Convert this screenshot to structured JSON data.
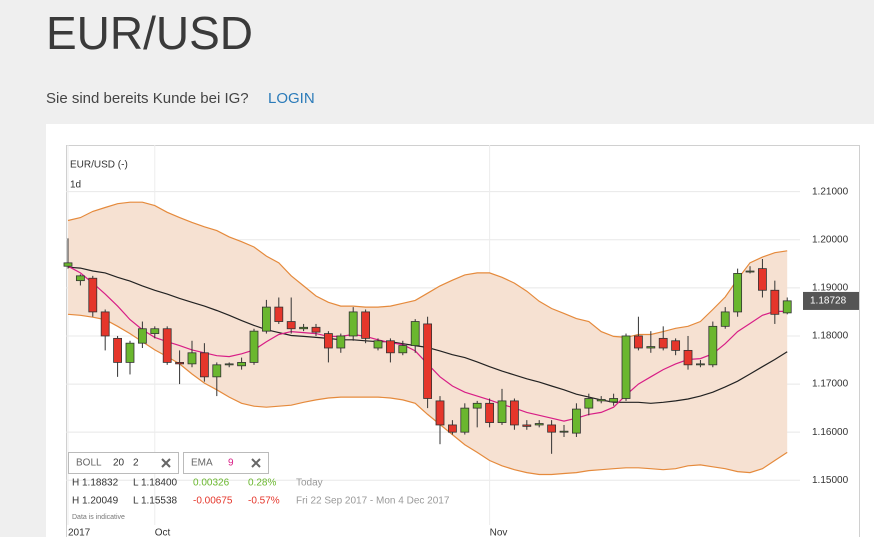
{
  "header": {
    "title": "EUR/USD",
    "prompt": "Sie sind bereits Kunde bei IG?",
    "login": "LOGIN"
  },
  "chart_data": {
    "type": "candlestick",
    "title": "EUR/USD (-)",
    "interval": "1d",
    "up_color": "#6ab72e",
    "down_color": "#e5362b",
    "open": [
      1.1945,
      1.1915,
      1.192,
      1.185,
      1.1795,
      1.1745,
      1.1785,
      1.1805,
      1.1815,
      1.1745,
      1.1742,
      1.1765,
      1.1715,
      1.174,
      1.1738,
      1.1745,
      1.181,
      1.186,
      1.183,
      1.1815,
      1.1818,
      1.1805,
      1.1775,
      1.18,
      1.185,
      1.1775,
      1.179,
      1.1765,
      1.178,
      1.1825,
      1.1665,
      1.1615,
      1.16,
      1.165,
      1.166,
      1.162,
      1.1665,
      1.1615,
      1.1615,
      1.1615,
      1.16,
      1.1598,
      1.165,
      1.1665,
      1.1663,
      1.167,
      1.18,
      1.1775,
      1.1795,
      1.179,
      1.177,
      1.174,
      1.174,
      1.182,
      1.185,
      1.1933,
      1.194,
      1.1895,
      1.1848
    ],
    "high": [
      1.2003,
      1.1928,
      1.1925,
      1.1855,
      1.18,
      1.179,
      1.183,
      1.182,
      1.182,
      1.177,
      1.179,
      1.1785,
      1.1745,
      1.1745,
      1.1755,
      1.1815,
      1.1875,
      1.188,
      1.188,
      1.1825,
      1.1825,
      1.181,
      1.1805,
      1.186,
      1.1855,
      1.1795,
      1.1795,
      1.179,
      1.1835,
      1.184,
      1.1675,
      1.1625,
      1.166,
      1.1665,
      1.167,
      1.169,
      1.167,
      1.1625,
      1.1625,
      1.1625,
      1.1615,
      1.166,
      1.168,
      1.1675,
      1.168,
      1.1805,
      1.184,
      1.181,
      1.182,
      1.1795,
      1.18,
      1.175,
      1.183,
      1.186,
      1.194,
      1.1945,
      1.196,
      1.1915,
      1.188
    ],
    "low": [
      1.194,
      1.1905,
      1.184,
      1.177,
      1.1715,
      1.172,
      1.1775,
      1.1795,
      1.174,
      1.17,
      1.1735,
      1.1705,
      1.1675,
      1.1735,
      1.173,
      1.174,
      1.1805,
      1.1825,
      1.1805,
      1.181,
      1.18,
      1.1745,
      1.1765,
      1.179,
      1.1785,
      1.177,
      1.1745,
      1.176,
      1.1765,
      1.165,
      1.1575,
      1.1595,
      1.1595,
      1.161,
      1.161,
      1.1615,
      1.1605,
      1.1605,
      1.161,
      1.1555,
      1.159,
      1.159,
      1.1635,
      1.166,
      1.1655,
      1.1665,
      1.177,
      1.1765,
      1.177,
      1.176,
      1.173,
      1.1735,
      1.1735,
      1.1815,
      1.184,
      1.193,
      1.188,
      1.1825,
      1.1845
    ],
    "close": [
      1.1952,
      1.1925,
      1.185,
      1.18,
      1.1745,
      1.1785,
      1.1815,
      1.1815,
      1.1745,
      1.1742,
      1.1765,
      1.1715,
      1.174,
      1.1742,
      1.1745,
      1.181,
      1.186,
      1.183,
      1.1815,
      1.1818,
      1.1808,
      1.1775,
      1.18,
      1.185,
      1.1795,
      1.179,
      1.1765,
      1.178,
      1.183,
      1.167,
      1.1615,
      1.16,
      1.165,
      1.166,
      1.162,
      1.1665,
      1.1615,
      1.1612,
      1.1618,
      1.16,
      1.1602,
      1.1648,
      1.167,
      1.1668,
      1.167,
      1.18,
      1.1775,
      1.1778,
      1.1775,
      1.177,
      1.174,
      1.1742,
      1.182,
      1.185,
      1.193,
      1.1935,
      1.1895,
      1.1845,
      1.1873
    ],
    "indicators": [
      {
        "name": "BOLL",
        "params": [
          20,
          2
        ],
        "color": "#e58a3c",
        "fill": "#f6e1d2",
        "middle_color": "#222222",
        "upper": [
          1.204,
          1.2046,
          1.2059,
          1.2067,
          1.2075,
          1.2078,
          1.2078,
          1.2071,
          1.2057,
          1.2046,
          1.2036,
          1.2027,
          1.2019,
          1.2006,
          1.1996,
          1.1985,
          1.1966,
          1.1952,
          1.1925,
          1.1904,
          1.1883,
          1.187,
          1.1862,
          1.1862,
          1.186,
          1.186,
          1.1862,
          1.1868,
          1.1874,
          1.1889,
          1.1904,
          1.1916,
          1.1927,
          1.1931,
          1.1931,
          1.1922,
          1.191,
          1.1893,
          1.1872,
          1.1857,
          1.1847,
          1.1836,
          1.183,
          1.1809,
          1.1799,
          1.1797,
          1.1803,
          1.1803,
          1.1809,
          1.1816,
          1.182,
          1.183,
          1.1855,
          1.1881,
          1.1918,
          1.1952,
          1.1964,
          1.1973,
          1.1977
        ],
        "middle": [
          1.1943,
          1.1941,
          1.1935,
          1.1931,
          1.1922,
          1.1914,
          1.1904,
          1.1895,
          1.1887,
          1.1878,
          1.187,
          1.1862,
          1.1853,
          1.1843,
          1.1832,
          1.1822,
          1.1813,
          1.1807,
          1.1801,
          1.1799,
          1.1797,
          1.1795,
          1.1792,
          1.1792,
          1.179,
          1.1788,
          1.1788,
          1.1784,
          1.178,
          1.1776,
          1.1769,
          1.1761,
          1.1755,
          1.1746,
          1.1736,
          1.1727,
          1.1719,
          1.1711,
          1.1704,
          1.1696,
          1.1688,
          1.1679,
          1.1673,
          1.1667,
          1.1662,
          1.1662,
          1.1662,
          1.166,
          1.1662,
          1.1665,
          1.1669,
          1.1675,
          1.1683,
          1.1694,
          1.1706,
          1.1721,
          1.1736,
          1.1751,
          1.1767
        ],
        "lower": [
          1.1845,
          1.1843,
          1.1839,
          1.1834,
          1.182,
          1.1805,
          1.1788,
          1.1771,
          1.1757,
          1.1742,
          1.1721,
          1.1702,
          1.1688,
          1.1673,
          1.166,
          1.1654,
          1.1652,
          1.1654,
          1.1656,
          1.1662,
          1.1667,
          1.1671,
          1.1673,
          1.1673,
          1.1673,
          1.1673,
          1.1671,
          1.1667,
          1.166,
          1.1637,
          1.1616,
          1.1595,
          1.1574,
          1.1558,
          1.1541,
          1.153,
          1.1522,
          1.1516,
          1.1512,
          1.1512,
          1.1514,
          1.1516,
          1.152,
          1.1522,
          1.1524,
          1.1526,
          1.1526,
          1.1524,
          1.1522,
          1.1524,
          1.153,
          1.1532,
          1.1528,
          1.1524,
          1.1518,
          1.1516,
          1.1524,
          1.1541,
          1.1558
        ]
      },
      {
        "name": "EMA",
        "params": [
          9
        ],
        "color": "#d81e86",
        "values": [
          1.1945,
          1.1931,
          1.191,
          1.1887,
          1.1862,
          1.1834,
          1.1813,
          1.1797,
          1.1788,
          1.178,
          1.1771,
          1.1765,
          1.1759,
          1.1757,
          1.1763,
          1.1771,
          1.1788,
          1.1803,
          1.1809,
          1.1807,
          1.1805,
          1.1799,
          1.1799,
          1.1803,
          1.1799,
          1.1792,
          1.1786,
          1.1782,
          1.1769,
          1.1742,
          1.1715,
          1.1696,
          1.1683,
          1.1675,
          1.1667,
          1.1658,
          1.165,
          1.1641,
          1.1635,
          1.1629,
          1.1623,
          1.1629,
          1.1637,
          1.1641,
          1.1652,
          1.1677,
          1.17,
          1.1715,
          1.173,
          1.1742,
          1.1751,
          1.1753,
          1.1763,
          1.1784,
          1.1809,
          1.1826,
          1.1843,
          1.1851,
          1.1851
        ]
      }
    ],
    "last_price": 1.18728,
    "xlim": [
      -0.16,
      59.03
    ],
    "xticks": [
      {
        "value": 0,
        "label": "2017"
      },
      {
        "value": 7,
        "label": "Oct"
      },
      {
        "value": 34,
        "label": "Nov"
      }
    ],
    "ylim": [
      1.1407,
      1.2197
    ],
    "yticks": [
      {
        "value": 1.15,
        "label": "1.15000"
      },
      {
        "value": 1.16,
        "label": "1.16000"
      },
      {
        "value": 1.17,
        "label": "1.17000"
      },
      {
        "value": 1.18,
        "label": "1.18000"
      },
      {
        "value": 1.19,
        "label": "1.19000"
      },
      {
        "value": 1.2,
        "label": "1.20000"
      },
      {
        "value": 1.21,
        "label": "1.21000"
      }
    ],
    "grid": true,
    "stats": [
      {
        "high": "H 1.18832",
        "low": "L 1.18400",
        "change": "0.00326",
        "change_pct": "0.28%",
        "period": "Today",
        "direction": "up"
      },
      {
        "high": "H 1.20049",
        "low": "L 1.15538",
        "change": "-0.00675",
        "change_pct": "-0.57%",
        "period": "Fri 22 Sep 2017 - Mon 4 Dec 2017",
        "direction": "down"
      }
    ],
    "note": "Data is indicative"
  }
}
